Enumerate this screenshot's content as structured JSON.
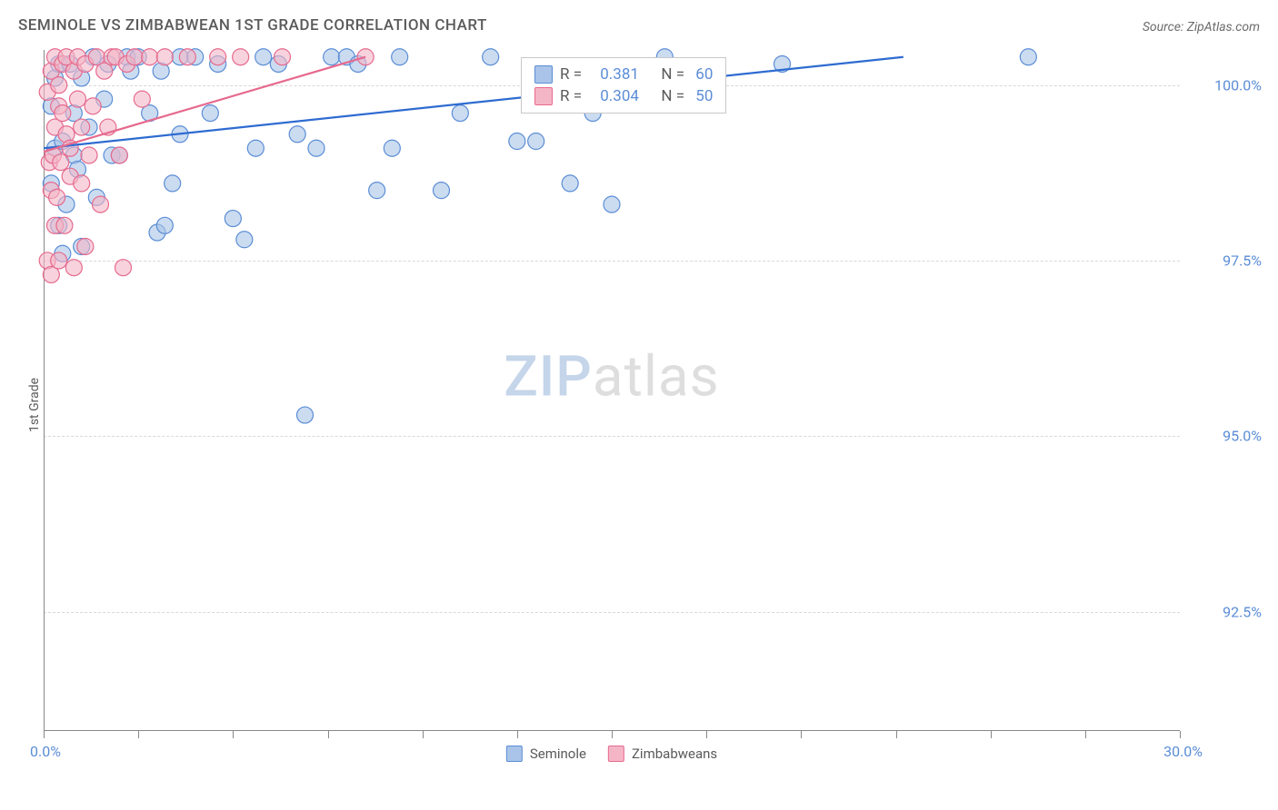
{
  "title": "SEMINOLE VS ZIMBABWEAN 1ST GRADE CORRELATION CHART",
  "source": "Source: ZipAtlas.com",
  "ylabel": "1st Grade",
  "watermark_zip": "ZIP",
  "watermark_atlas": "atlas",
  "chart": {
    "type": "scatter",
    "background_color": "#ffffff",
    "grid_color": "#d8d8d8",
    "axis_color": "#888888",
    "text_color": "#5a5a5a",
    "tick_label_color": "#5b8dd6",
    "xlim": [
      0,
      30
    ],
    "ylim": [
      90.8,
      100.5
    ],
    "x_axis_label_min": "0.0%",
    "x_axis_label_max": "30.0%",
    "xtick_positions": [
      0,
      2.5,
      5,
      7.5,
      10,
      12.5,
      15,
      17.5,
      20,
      22.5,
      25,
      27.5,
      30
    ],
    "yticks": [
      {
        "v": 92.5,
        "label": "92.5%"
      },
      {
        "v": 95.0,
        "label": "95.0%"
      },
      {
        "v": 97.5,
        "label": "97.5%"
      },
      {
        "v": 100.0,
        "label": "100.0%"
      }
    ],
    "marker_radius": 9,
    "marker_stroke_width": 1.2,
    "marker_fill_opacity": 0.35,
    "line_width": 2.2,
    "series": [
      {
        "key": "seminole",
        "name": "Seminole",
        "color_stroke": "#5b8dd6",
        "color_fill": "#a9c4e8",
        "line_color": "#2e6bd1",
        "R": "0.381",
        "N": "60",
        "trend": {
          "x1": 0,
          "y1": 99.1,
          "x2": 22.7,
          "y2": 100.4
        },
        "points": [
          [
            0.2,
            98.6
          ],
          [
            0.2,
            99.7
          ],
          [
            0.3,
            100.1
          ],
          [
            0.3,
            99.1
          ],
          [
            0.4,
            98.0
          ],
          [
            0.4,
            100.3
          ],
          [
            0.5,
            99.2
          ],
          [
            0.5,
            97.6
          ],
          [
            0.6,
            98.3
          ],
          [
            0.7,
            100.3
          ],
          [
            0.8,
            99.0
          ],
          [
            0.8,
            99.6
          ],
          [
            0.9,
            98.8
          ],
          [
            1.0,
            100.1
          ],
          [
            1.0,
            97.7
          ],
          [
            1.2,
            99.4
          ],
          [
            1.3,
            100.4
          ],
          [
            1.4,
            98.4
          ],
          [
            1.6,
            99.8
          ],
          [
            1.7,
            100.3
          ],
          [
            1.8,
            99.0
          ],
          [
            2.0,
            99.0
          ],
          [
            2.2,
            100.4
          ],
          [
            2.3,
            100.2
          ],
          [
            2.5,
            100.4
          ],
          [
            2.8,
            99.6
          ],
          [
            3.0,
            97.9
          ],
          [
            3.1,
            100.2
          ],
          [
            3.2,
            98.0
          ],
          [
            3.4,
            98.6
          ],
          [
            3.6,
            100.4
          ],
          [
            3.6,
            99.3
          ],
          [
            4.0,
            100.4
          ],
          [
            4.4,
            99.6
          ],
          [
            4.6,
            100.3
          ],
          [
            5.0,
            98.1
          ],
          [
            5.3,
            97.8
          ],
          [
            5.6,
            99.1
          ],
          [
            5.8,
            100.4
          ],
          [
            6.2,
            100.3
          ],
          [
            6.7,
            99.3
          ],
          [
            6.9,
            95.3
          ],
          [
            7.2,
            99.1
          ],
          [
            7.6,
            100.4
          ],
          [
            8.0,
            100.4
          ],
          [
            8.3,
            100.3
          ],
          [
            8.8,
            98.5
          ],
          [
            9.2,
            99.1
          ],
          [
            9.4,
            100.4
          ],
          [
            10.5,
            98.5
          ],
          [
            11.0,
            99.6
          ],
          [
            11.8,
            100.4
          ],
          [
            12.5,
            99.2
          ],
          [
            13.0,
            99.2
          ],
          [
            13.9,
            98.6
          ],
          [
            14.5,
            99.6
          ],
          [
            15.0,
            98.3
          ],
          [
            16.4,
            100.4
          ],
          [
            19.5,
            100.3
          ],
          [
            26.0,
            100.4
          ]
        ]
      },
      {
        "key": "zimbabweans",
        "name": "Zimbabweans",
        "color_stroke": "#e66a8e",
        "color_fill": "#f4b6c7",
        "line_color": "#e66a8e",
        "R": "0.304",
        "N": "50",
        "trend": {
          "x1": 0,
          "y1": 99.05,
          "x2": 8.5,
          "y2": 100.4
        },
        "points": [
          [
            0.1,
            97.5
          ],
          [
            0.1,
            99.9
          ],
          [
            0.15,
            98.9
          ],
          [
            0.2,
            97.3
          ],
          [
            0.2,
            100.2
          ],
          [
            0.2,
            98.5
          ],
          [
            0.25,
            99.0
          ],
          [
            0.3,
            98.0
          ],
          [
            0.3,
            100.4
          ],
          [
            0.3,
            99.4
          ],
          [
            0.35,
            98.4
          ],
          [
            0.4,
            97.5
          ],
          [
            0.4,
            99.7
          ],
          [
            0.4,
            100.0
          ],
          [
            0.45,
            98.9
          ],
          [
            0.5,
            99.6
          ],
          [
            0.5,
            100.3
          ],
          [
            0.55,
            98.0
          ],
          [
            0.6,
            99.3
          ],
          [
            0.6,
            100.4
          ],
          [
            0.7,
            98.7
          ],
          [
            0.7,
            99.1
          ],
          [
            0.8,
            97.4
          ],
          [
            0.8,
            100.2
          ],
          [
            0.9,
            99.8
          ],
          [
            0.9,
            100.4
          ],
          [
            1.0,
            98.6
          ],
          [
            1.0,
            99.4
          ],
          [
            1.1,
            100.3
          ],
          [
            1.1,
            97.7
          ],
          [
            1.2,
            99.0
          ],
          [
            1.3,
            99.7
          ],
          [
            1.4,
            100.4
          ],
          [
            1.5,
            98.3
          ],
          [
            1.6,
            100.2
          ],
          [
            1.7,
            99.4
          ],
          [
            1.8,
            100.4
          ],
          [
            1.9,
            100.4
          ],
          [
            2.0,
            99.0
          ],
          [
            2.1,
            97.4
          ],
          [
            2.2,
            100.3
          ],
          [
            2.4,
            100.4
          ],
          [
            2.6,
            99.8
          ],
          [
            2.8,
            100.4
          ],
          [
            3.2,
            100.4
          ],
          [
            3.8,
            100.4
          ],
          [
            4.6,
            100.4
          ],
          [
            5.2,
            100.4
          ],
          [
            6.3,
            100.4
          ],
          [
            8.5,
            100.4
          ]
        ]
      }
    ]
  },
  "stats_labels": {
    "R": "R =",
    "N": "N ="
  }
}
